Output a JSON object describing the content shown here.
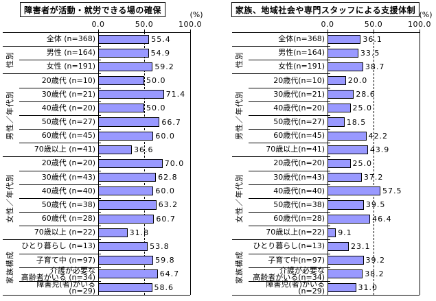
{
  "shared": {
    "unit_label": "(%)",
    "xtick_labels": [
      "0.0",
      "50.0",
      "100.0"
    ],
    "colors": {
      "bar_fill": "#9999FF",
      "bar_border": "#000000",
      "line": "#000000",
      "background": "#FFFFFF"
    },
    "row_groups": [
      {
        "label": "",
        "span": 1
      },
      {
        "label": "性別",
        "span": 2
      },
      {
        "label": "男性／年代別",
        "span": 6
      },
      {
        "label": "女性／年代別",
        "span": 6
      },
      {
        "label": "家族構成",
        "span": 4
      }
    ]
  },
  "chart_data": [
    {
      "type": "bar",
      "orientation": "horizontal",
      "title": "障害者が活動・就労できる場の確保",
      "xlabel": "(%)",
      "xlim": [
        0,
        100
      ],
      "xticks": [
        0,
        50,
        100
      ],
      "gridline_at": 50,
      "categories": [
        "全体 (n=368)",
        "男性 (n=164)",
        "女性 (n=191)",
        "20歳代 (n=10)",
        "30歳代 (n=21)",
        "40歳代 (n=20)",
        "50歳代 (n=27)",
        "60歳代 (n=45)",
        "70歳以上 (n=41)",
        "20歳代 (n=20)",
        "30歳代 (n=43)",
        "40歳代 (n=40)",
        "50歳代 (n=38)",
        "60歳代 (n=28)",
        "70歳以上 (n=22)",
        "ひとり暮らし (n=13)",
        "子育て中 (n=97)",
        "介護が必要な\n高齢者がいる (n=34)",
        "障害児(者)がいる (n=29)"
      ],
      "values": [
        55.4,
        54.9,
        59.2,
        50.0,
        71.4,
        50.0,
        66.7,
        60.0,
        36.6,
        70.0,
        62.8,
        60.0,
        63.2,
        60.7,
        31.8,
        53.8,
        59.8,
        64.7,
        58.6
      ]
    },
    {
      "type": "bar",
      "orientation": "horizontal",
      "title": "家族、地域社会や専門スタッフによる支援体制",
      "xlabel": "(%)",
      "xlim": [
        0,
        100
      ],
      "xticks": [
        0,
        50,
        100
      ],
      "gridline_at": 50,
      "categories": [
        "全体(n=368)",
        "男性(n=164)",
        "女性(n=191)",
        "20歳代(n=10)",
        "30歳代(n=21)",
        "40歳代(n=20)",
        "50歳代(n=27)",
        "60歳代(n=45)",
        "70歳以上(n=41)",
        "20歳代(n=20)",
        "30歳代(n=43)",
        "40歳代(n=40)",
        "50歳代(n=38)",
        "60歳代(n=28)",
        "70歳以上(n=22)",
        "ひとり暮らし(n=13)",
        "子育て中(n=97)",
        "介護が必要な\n高齢者がいる(n=34)",
        "障害児(者)がいる(n=29)"
      ],
      "values": [
        36.1,
        33.5,
        38.7,
        20.0,
        28.6,
        25.0,
        18.5,
        42.2,
        43.9,
        25.0,
        37.2,
        57.5,
        39.5,
        46.4,
        9.1,
        23.1,
        39.2,
        38.2,
        31.0
      ]
    }
  ]
}
